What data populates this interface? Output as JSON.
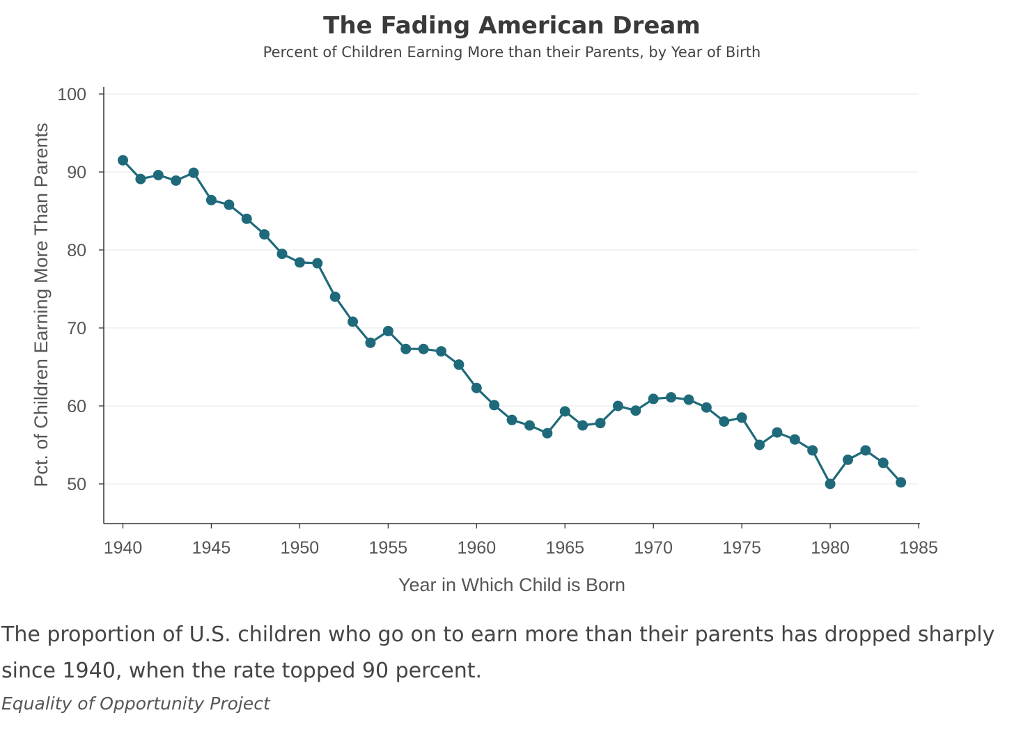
{
  "chart_data": {
    "type": "line",
    "title": "The Fading American Dream",
    "subtitle": "Percent of Children Earning More than their Parents, by Year of Birth",
    "xlabel": "Year in Which Child is Born",
    "ylabel": "Pct. of Children Earning More Than Parents",
    "xlim": [
      1939,
      1985
    ],
    "ylim": [
      45,
      101
    ],
    "xticks": [
      1940,
      1945,
      1950,
      1955,
      1960,
      1965,
      1970,
      1975,
      1980,
      1985
    ],
    "yticks": [
      50,
      60,
      70,
      80,
      90,
      100
    ],
    "grid": true,
    "color": "#1f6a7a",
    "series": [
      {
        "name": "Pct. of Children Earning More Than Parents",
        "x": [
          1940,
          1941,
          1942,
          1943,
          1944,
          1945,
          1946,
          1947,
          1948,
          1949,
          1950,
          1951,
          1952,
          1953,
          1954,
          1955,
          1956,
          1957,
          1958,
          1959,
          1960,
          1961,
          1962,
          1963,
          1964,
          1965,
          1966,
          1967,
          1968,
          1969,
          1970,
          1971,
          1972,
          1973,
          1974,
          1975,
          1976,
          1977,
          1978,
          1979,
          1980,
          1981,
          1982,
          1983,
          1984
        ],
        "values": [
          91.5,
          89.1,
          89.6,
          88.9,
          89.9,
          86.4,
          85.8,
          84.0,
          82.0,
          79.5,
          78.4,
          78.3,
          74.0,
          70.8,
          68.1,
          69.6,
          67.3,
          67.3,
          67.0,
          65.3,
          62.3,
          60.1,
          58.2,
          57.5,
          56.5,
          59.3,
          57.5,
          57.8,
          60.0,
          59.4,
          60.9,
          61.1,
          60.8,
          59.8,
          58.0,
          58.5,
          55.0,
          56.6,
          55.7,
          54.3,
          50.0,
          53.1,
          54.3,
          52.7,
          50.2
        ]
      }
    ]
  },
  "caption": "The proportion of U.S. children who go on to earn more than their parents has dropped sharply since 1940, when the rate topped 90 percent.",
  "source": "Equality of Opportunity Project"
}
